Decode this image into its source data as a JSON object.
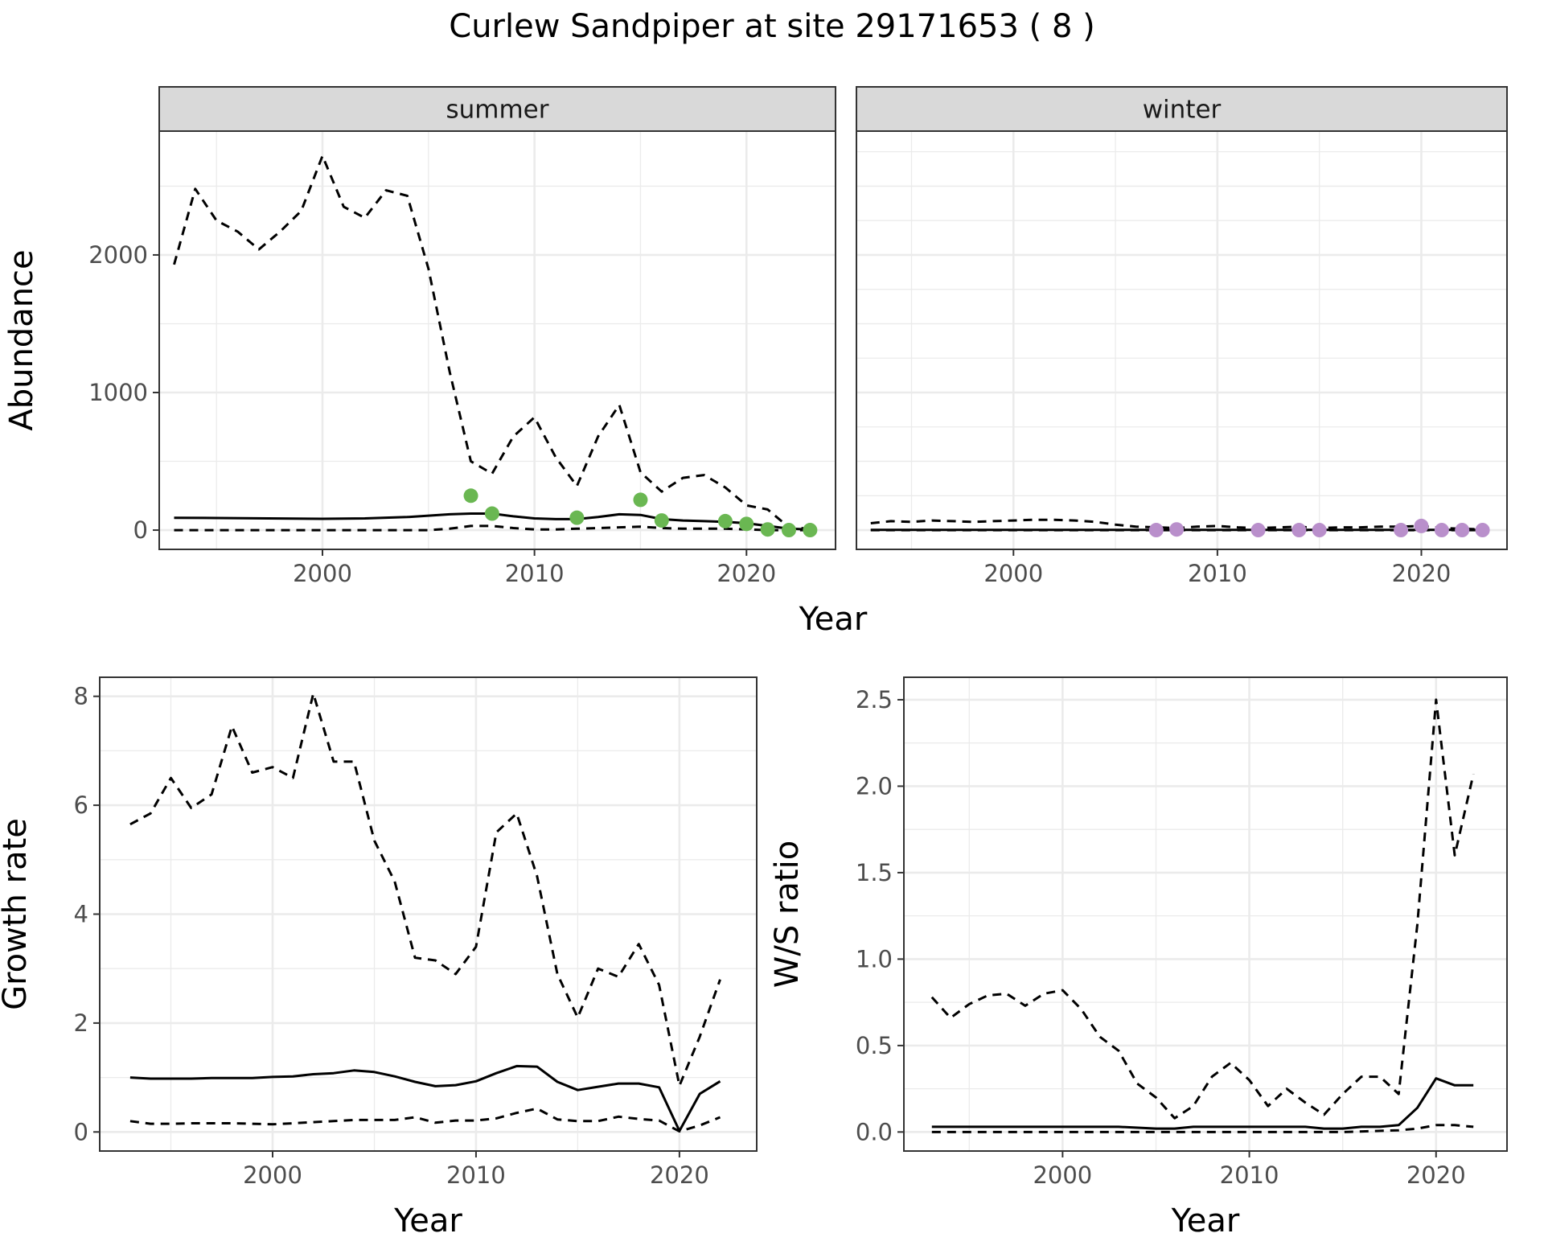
{
  "title": "Curlew Sandpiper at site 29171653 ( 8 )",
  "colors": {
    "summer_points": "#6ab752",
    "winter_points": "#b98fcb",
    "lines": "#000000",
    "strip": "#d9d9d9",
    "grid": "#ebebeb"
  },
  "chart_data": [
    {
      "type": "line",
      "facet": "summer",
      "ylabel": "Abundance",
      "xlabel": "Year",
      "xlim": [
        1992.3,
        2024.2
      ],
      "ylim": [
        -140,
        2900
      ],
      "xticks": [
        2000,
        2010,
        2020
      ],
      "yticks": [
        0,
        1000,
        2000
      ],
      "grid": true,
      "series": [
        {
          "role": "mean",
          "style": "solid",
          "x": [
            1993,
            1995,
            2000,
            2002,
            2004,
            2006,
            2007,
            2008,
            2009,
            2010,
            2011,
            2012,
            2013,
            2014,
            2015,
            2016,
            2017,
            2018,
            2019,
            2020,
            2021,
            2022,
            2023
          ],
          "y": [
            90,
            88,
            82,
            85,
            95,
            115,
            120,
            120,
            100,
            85,
            80,
            80,
            95,
            115,
            110,
            80,
            70,
            65,
            60,
            50,
            30,
            10,
            5
          ]
        },
        {
          "role": "upper",
          "style": "dashed",
          "x": [
            1993,
            1994,
            1995,
            1996,
            1997,
            1998,
            1999,
            2000,
            2001,
            2002,
            2003,
            2004,
            2005,
            2006,
            2007,
            2008,
            2009,
            2010,
            2011,
            2012,
            2013,
            2014,
            2015,
            2016,
            2017,
            2018,
            2019,
            2020,
            2021,
            2022,
            2023
          ],
          "y": [
            1930,
            2480,
            2250,
            2170,
            2040,
            2170,
            2320,
            2720,
            2350,
            2270,
            2470,
            2430,
            1900,
            1150,
            500,
            410,
            680,
            820,
            530,
            320,
            680,
            910,
            420,
            280,
            380,
            400,
            310,
            180,
            150,
            20,
            10
          ]
        },
        {
          "role": "lower",
          "style": "dashed",
          "x": [
            1993,
            2000,
            2005,
            2006,
            2007,
            2008,
            2009,
            2010,
            2011,
            2012,
            2013,
            2014,
            2015,
            2016,
            2017,
            2018,
            2019,
            2020,
            2021,
            2022,
            2023
          ],
          "y": [
            0,
            0,
            0,
            10,
            30,
            30,
            15,
            5,
            5,
            10,
            15,
            20,
            25,
            15,
            10,
            10,
            10,
            5,
            0,
            0,
            0
          ]
        }
      ],
      "points": {
        "x": [
          2007,
          2008,
          2012,
          2015,
          2016,
          2019,
          2020,
          2021,
          2022,
          2023
        ],
        "y": [
          250,
          120,
          90,
          220,
          70,
          65,
          45,
          5,
          0,
          0
        ]
      }
    },
    {
      "type": "line",
      "facet": "winter",
      "xlabel": "Year",
      "xlim": [
        1992.3,
        2024.2
      ],
      "ylim": [
        -140,
        2900
      ],
      "xticks": [
        2000,
        2010,
        2020
      ],
      "grid": true,
      "series": [
        {
          "role": "mean",
          "style": "solid",
          "x": [
            1993,
            2000,
            2005,
            2010,
            2015,
            2020,
            2023
          ],
          "y": [
            2,
            2,
            2,
            2,
            2,
            2,
            2
          ]
        },
        {
          "role": "upper",
          "style": "dashed",
          "x": [
            1993,
            1994,
            1995,
            1996,
            1997,
            1998,
            1999,
            2000,
            2001,
            2002,
            2003,
            2004,
            2005,
            2006,
            2007,
            2008,
            2009,
            2010,
            2011,
            2012,
            2013,
            2014,
            2015,
            2016,
            2017,
            2018,
            2019,
            2020,
            2021,
            2022,
            2023
          ],
          "y": [
            50,
            65,
            60,
            70,
            65,
            60,
            65,
            70,
            75,
            75,
            70,
            60,
            40,
            25,
            20,
            15,
            25,
            30,
            20,
            15,
            20,
            25,
            15,
            20,
            20,
            25,
            25,
            30,
            15,
            10,
            5
          ]
        },
        {
          "role": "lower",
          "style": "dashed",
          "x": [
            1993,
            2000,
            2005,
            2010,
            2015,
            2020,
            2023
          ],
          "y": [
            0,
            0,
            0,
            0,
            0,
            0,
            0
          ]
        }
      ],
      "points": {
        "x": [
          2007,
          2008,
          2012,
          2014,
          2015,
          2019,
          2020,
          2021,
          2022,
          2023
        ],
        "y": [
          0,
          5,
          0,
          0,
          0,
          0,
          30,
          0,
          0,
          0
        ]
      }
    },
    {
      "type": "line",
      "ylabel": "Growth rate",
      "xlabel": "Year",
      "xlim": [
        1991.5,
        2023.8
      ],
      "ylim": [
        -0.35,
        8.35
      ],
      "xticks": [
        2000,
        2010,
        2020
      ],
      "yticks": [
        0,
        2,
        4,
        6,
        8
      ],
      "grid": true,
      "series": [
        {
          "role": "mean",
          "style": "solid",
          "x": [
            1993,
            1994,
            1995,
            1996,
            1997,
            1998,
            1999,
            2000,
            2001,
            2002,
            2003,
            2004,
            2005,
            2006,
            2007,
            2008,
            2009,
            2010,
            2011,
            2012,
            2013,
            2014,
            2015,
            2016,
            2017,
            2018,
            2019,
            2020,
            2021,
            2022
          ],
          "y": [
            1.0,
            0.98,
            0.98,
            0.98,
            0.99,
            0.99,
            0.99,
            1.01,
            1.02,
            1.06,
            1.08,
            1.13,
            1.1,
            1.02,
            0.92,
            0.84,
            0.86,
            0.93,
            1.08,
            1.21,
            1.2,
            0.92,
            0.77,
            0.83,
            0.89,
            0.89,
            0.82,
            0.02,
            0.7,
            0.93
          ]
        },
        {
          "role": "upper",
          "style": "dashed",
          "x": [
            1993,
            1994,
            1995,
            1996,
            1997,
            1998,
            1999,
            2000,
            2001,
            2002,
            2003,
            2004,
            2005,
            2006,
            2007,
            2008,
            2009,
            2010,
            2011,
            2012,
            2013,
            2014,
            2015,
            2016,
            2017,
            2018,
            2019,
            2020,
            2021,
            2022
          ],
          "y": [
            5.65,
            5.85,
            6.5,
            5.95,
            6.2,
            7.45,
            6.6,
            6.7,
            6.5,
            8.05,
            6.8,
            6.8,
            5.35,
            4.6,
            3.2,
            3.15,
            2.9,
            3.4,
            5.5,
            5.85,
            4.7,
            2.9,
            2.1,
            3.0,
            2.85,
            3.45,
            2.7,
            0.85,
            1.75,
            2.8
          ]
        },
        {
          "role": "lower",
          "style": "dashed",
          "x": [
            1993,
            1994,
            1995,
            1996,
            1997,
            1998,
            1999,
            2000,
            2001,
            2002,
            2003,
            2004,
            2005,
            2006,
            2007,
            2008,
            2009,
            2010,
            2011,
            2012,
            2013,
            2014,
            2015,
            2016,
            2017,
            2018,
            2019,
            2020,
            2021,
            2022
          ],
          "y": [
            0.2,
            0.15,
            0.15,
            0.16,
            0.16,
            0.16,
            0.15,
            0.14,
            0.16,
            0.18,
            0.2,
            0.22,
            0.22,
            0.22,
            0.27,
            0.17,
            0.21,
            0.21,
            0.25,
            0.35,
            0.43,
            0.23,
            0.2,
            0.2,
            0.28,
            0.24,
            0.21,
            0.01,
            0.12,
            0.27
          ]
        }
      ]
    },
    {
      "type": "line",
      "ylabel": "W/S ratio",
      "xlabel": "Year",
      "xlim": [
        1991.5,
        2023.8
      ],
      "ylim": [
        -0.11,
        2.63
      ],
      "xticks": [
        2000,
        2010,
        2020
      ],
      "yticks": [
        0.0,
        0.5,
        1.0,
        1.5,
        2.0,
        2.5
      ],
      "ytick_labels": [
        "0.0",
        "0.5",
        "1.0",
        "1.5",
        "2.0",
        "2.5"
      ],
      "grid": true,
      "series": [
        {
          "role": "mean",
          "style": "solid",
          "x": [
            1993,
            1996,
            2000,
            2003,
            2005,
            2006,
            2007,
            2010,
            2013,
            2014,
            2015,
            2016,
            2017,
            2018,
            2019,
            2020,
            2021,
            2022
          ],
          "y": [
            0.03,
            0.03,
            0.03,
            0.03,
            0.02,
            0.02,
            0.03,
            0.03,
            0.03,
            0.02,
            0.02,
            0.03,
            0.03,
            0.04,
            0.14,
            0.31,
            0.27,
            0.27
          ]
        },
        {
          "role": "upper",
          "style": "dashed",
          "x": [
            1993,
            1994,
            1995,
            1996,
            1997,
            1998,
            1999,
            2000,
            2001,
            2002,
            2003,
            2004,
            2005,
            2006,
            2007,
            2008,
            2009,
            2010,
            2011,
            2012,
            2013,
            2014,
            2015,
            2016,
            2017,
            2018,
            2019,
            2020,
            2021,
            2022
          ],
          "y": [
            0.78,
            0.66,
            0.74,
            0.79,
            0.8,
            0.73,
            0.8,
            0.82,
            0.71,
            0.55,
            0.47,
            0.28,
            0.2,
            0.08,
            0.15,
            0.32,
            0.4,
            0.3,
            0.15,
            0.25,
            0.17,
            0.1,
            0.22,
            0.32,
            0.32,
            0.22,
            1.2,
            2.5,
            1.6,
            2.07
          ]
        },
        {
          "role": "lower",
          "style": "dashed",
          "x": [
            1993,
            2000,
            2005,
            2010,
            2015,
            2018,
            2019,
            2020,
            2021,
            2022
          ],
          "y": [
            0,
            0,
            0,
            0,
            0,
            0.01,
            0.02,
            0.04,
            0.04,
            0.03
          ]
        }
      ]
    }
  ]
}
